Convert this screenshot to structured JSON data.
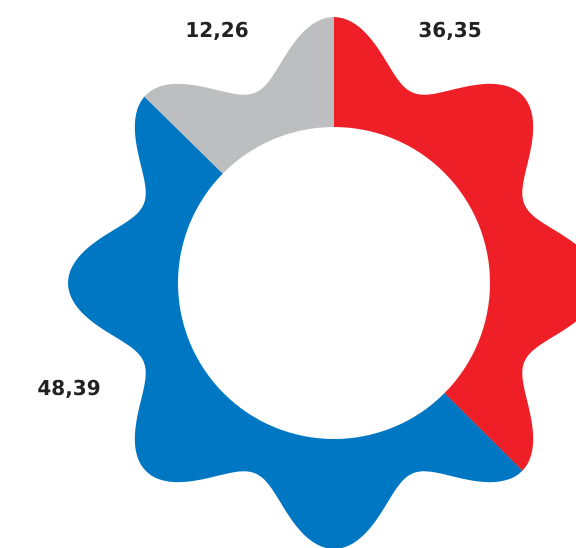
{
  "chart_data": {
    "type": "pie",
    "variant": "flower-donut",
    "petals": 8,
    "slices": [
      {
        "value": 36.35,
        "label": "36,35",
        "color": "#ee1f26"
      },
      {
        "value": 48.39,
        "label": "48,39",
        "color": "#0077c2"
      },
      {
        "value": 12.26,
        "label": "12,26",
        "color": "#bcbec0"
      }
    ],
    "title": "",
    "legend": "none"
  }
}
